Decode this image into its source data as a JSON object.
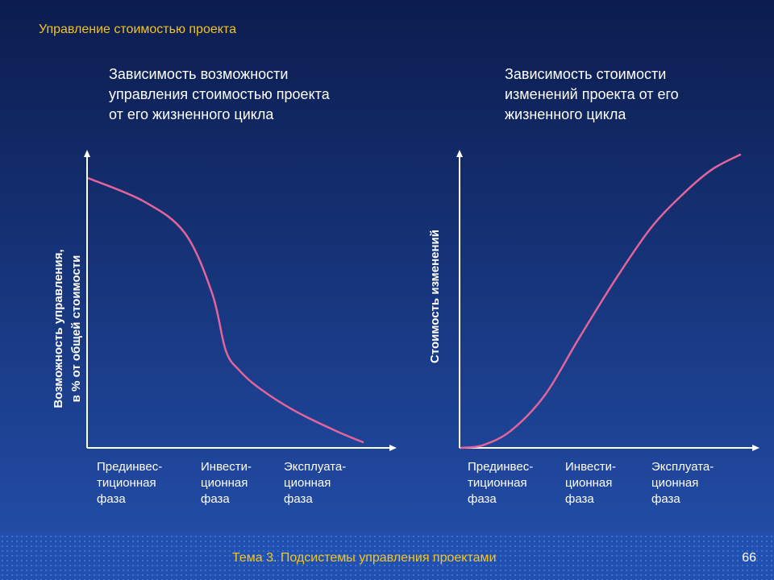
{
  "header": {
    "title": "Управление стоимостью проекта"
  },
  "footer": {
    "text": "Тема 3. Подсистемы управления проектами",
    "page_number": "66"
  },
  "colors": {
    "curve": "#e3649c",
    "axis": "#ffffff",
    "header_text": "#f2c41c"
  },
  "chart_data": [
    {
      "type": "line",
      "title_lines": [
        "Зависимость возможности",
        "управления стоимостью проекта",
        "от его жизненного цикла"
      ],
      "ylabel_lines": [
        "Возможность управления,",
        "в % от общей стоимости"
      ],
      "xlabel": "",
      "categories": [
        [
          "Прединвес-",
          "тиционная",
          "фаза"
        ],
        [
          "Инвести-",
          "ционная",
          "фаза"
        ],
        [
          "Эксплуата-",
          "ционная",
          "фаза"
        ]
      ],
      "grid": false,
      "series": [
        {
          "x": [
            0.0,
            0.2,
            0.35,
            0.45,
            0.5,
            0.55,
            0.62,
            0.75,
            0.9,
            1.0
          ],
          "y": [
            0.94,
            0.86,
            0.75,
            0.54,
            0.34,
            0.27,
            0.21,
            0.13,
            0.06,
            0.02
          ]
        }
      ]
    },
    {
      "type": "line",
      "title_lines": [
        "Зависимость стоимости",
        "изменений проекта от его",
        "жизненного цикла"
      ],
      "ylabel_lines": [
        "Стоимость изменений"
      ],
      "xlabel": "",
      "categories": [
        [
          "Прединвес-",
          "тиционная",
          "фаза"
        ],
        [
          "Инвести-",
          "ционная",
          "фаза"
        ],
        [
          "Эксплуата-",
          "ционная",
          "фаза"
        ]
      ],
      "grid": false,
      "series": [
        {
          "x": [
            0.0,
            0.08,
            0.18,
            0.3,
            0.42,
            0.55,
            0.68,
            0.8,
            0.9,
            1.0
          ],
          "y": [
            0.0,
            0.01,
            0.06,
            0.18,
            0.37,
            0.57,
            0.75,
            0.87,
            0.95,
            1.0
          ]
        }
      ]
    }
  ]
}
